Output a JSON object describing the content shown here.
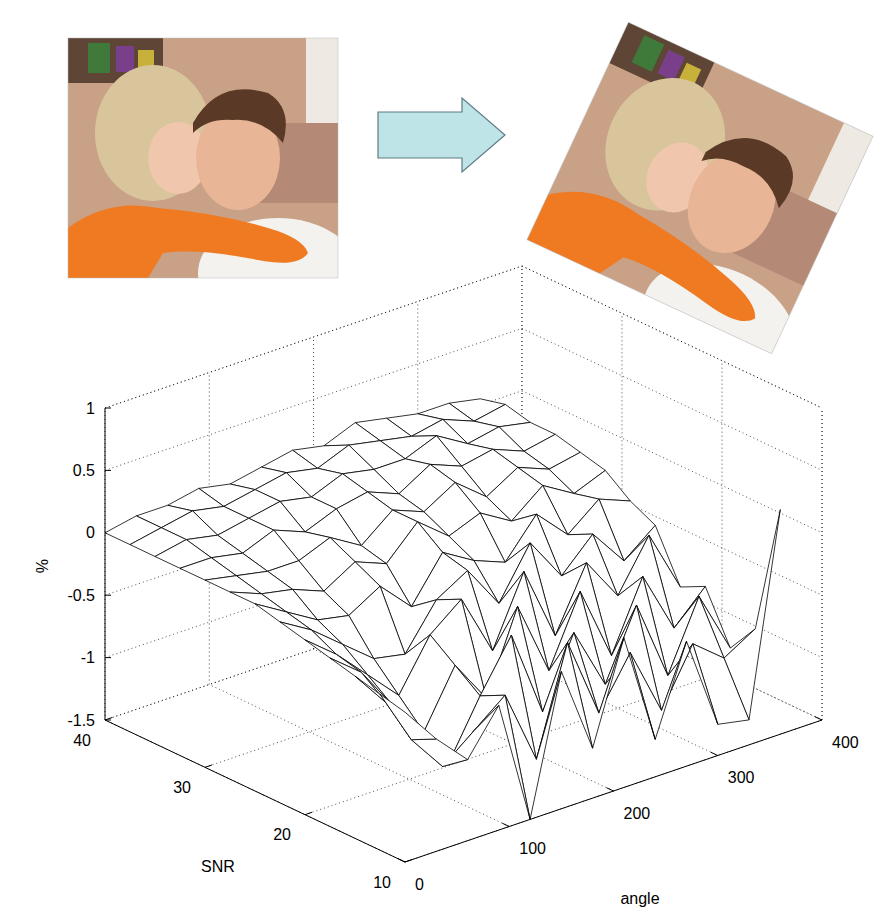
{
  "chart_data": {
    "type": "surface",
    "xlabel": "angle",
    "ylabel": "SNR",
    "zlabel": "%",
    "x": [
      0,
      30,
      60,
      90,
      120,
      150,
      180,
      210,
      240,
      270,
      300,
      330,
      360
    ],
    "y": [
      10,
      12.5,
      15,
      17.5,
      20,
      22.5,
      25,
      27.5,
      30,
      32.5,
      35,
      37.5,
      40
    ],
    "values": [
      [
        -0.3,
        -0.6,
        -0.85,
        -0.5,
        -1.5,
        -0.4,
        -1.1,
        -0.3,
        -1.2,
        -0.5,
        -1.25,
        -1.3,
        0.3
      ],
      [
        -0.25,
        -0.7,
        -1.0,
        -0.8,
        -0.6,
        -1.2,
        -0.35,
        -1.0,
        -0.6,
        -1.15,
        -0.7,
        -0.9,
        -0.75
      ],
      [
        -0.2,
        -0.5,
        -0.9,
        -1.15,
        -0.7,
        -0.3,
        -1.0,
        -0.45,
        -0.95,
        -0.4,
        -1.05,
        -0.5,
        -1.0
      ],
      [
        -0.15,
        -0.35,
        -0.7,
        -1.0,
        -0.55,
        -0.9,
        -0.25,
        -0.85,
        -0.3,
        -0.9,
        -0.35,
        -0.85,
        -0.6
      ],
      [
        -0.1,
        -0.3,
        -0.55,
        -0.8,
        -0.4,
        -0.2,
        -0.7,
        -0.15,
        -0.75,
        -0.25,
        -0.6,
        -0.2,
        -0.7
      ],
      [
        -0.05,
        -0.2,
        -0.4,
        -0.6,
        -0.65,
        -0.3,
        -0.15,
        -0.5,
        -0.1,
        -0.45,
        -0.2,
        -0.5,
        -0.3
      ],
      [
        0,
        -0.15,
        -0.3,
        -0.35,
        -0.2,
        -0.45,
        -0.1,
        -0.25,
        -0.35,
        -0.05,
        -0.3,
        -0.1,
        -0.2
      ],
      [
        0,
        -0.1,
        -0.15,
        -0.25,
        -0.1,
        -0.2,
        0.05,
        -0.15,
        -0.05,
        -0.2,
        0,
        -0.15,
        -0.05
      ],
      [
        0,
        -0.05,
        -0.1,
        -0.1,
        0,
        -0.15,
        0.05,
        -0.05,
        0.1,
        -0.1,
        0.05,
        -0.05,
        0
      ],
      [
        0,
        0,
        -0.05,
        0.05,
        -0.05,
        0.05,
        0.1,
        0,
        0.15,
        0.05,
        0.1,
        0,
        0.05
      ],
      [
        0,
        0.05,
        0,
        0.05,
        0.1,
        0.05,
        0.15,
        0.1,
        0.1,
        0.2,
        0.05,
        0.1,
        0.05
      ],
      [
        0,
        0.05,
        0.1,
        0.05,
        0.1,
        0.15,
        0.1,
        0.2,
        0.15,
        0.1,
        0.15,
        0.05,
        0.1
      ],
      [
        0,
        0.05,
        0.05,
        0.1,
        0.05,
        0.1,
        0.15,
        0.1,
        0.2,
        0.15,
        0.1,
        0.1,
        0.05
      ]
    ],
    "xlim": [
      0,
      400
    ],
    "xticks": [
      0,
      100,
      200,
      300,
      400
    ],
    "ylim": [
      10,
      40
    ],
    "yticks": [
      10,
      20,
      30,
      40
    ],
    "zlim": [
      -1.5,
      1
    ],
    "zticks": [
      -1.5,
      -1,
      -0.5,
      0,
      0.5,
      1
    ],
    "grid": true
  }
}
